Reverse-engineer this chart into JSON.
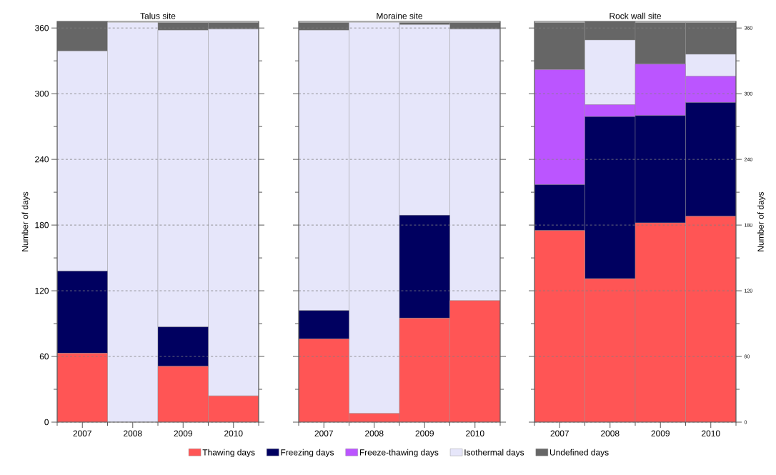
{
  "chart_data": [
    {
      "type": "bar",
      "stacked": true,
      "title": "Talus site",
      "ylabel": "Number of days",
      "categories": [
        "2007",
        "2008",
        "2009",
        "2010"
      ],
      "ylim": [
        0,
        366
      ],
      "yticks": [
        0,
        60,
        120,
        180,
        240,
        300,
        360
      ],
      "grid": "y",
      "tick_labels": "xy",
      "legend": false,
      "series": [
        {
          "color": "#ff5555",
          "values": [
            63,
            0,
            51,
            24
          ]
        },
        {
          "color": "#000060",
          "values": [
            75,
            0,
            36,
            0
          ]
        },
        {
          "color": "#bb55ff",
          "values": [
            0,
            0,
            0,
            0
          ]
        },
        {
          "color": "#e6e6fa",
          "values": [
            201,
            365,
            271,
            335
          ]
        },
        {
          "color": "#666666",
          "values": [
            27,
            0,
            7,
            6
          ]
        }
      ]
    },
    {
      "type": "bar",
      "stacked": true,
      "title": "Moraine site",
      "categories": [
        "2007",
        "2008",
        "2009",
        "2010"
      ],
      "ylim": [
        0,
        366
      ],
      "yticks": [
        0,
        60,
        120,
        180,
        240,
        300,
        360
      ],
      "grid": "y",
      "tick_labels": "x",
      "legend": "bottom",
      "series": [
        {
          "name": "Thawing days",
          "color": "#ff5555",
          "values": [
            76,
            8,
            95,
            111
          ]
        },
        {
          "name": "Freezing days",
          "color": "#000060",
          "values": [
            26,
            0,
            94,
            0
          ]
        },
        {
          "name": "Freeze-thawing days",
          "color": "#bb55ff",
          "values": [
            0,
            0,
            0,
            0
          ]
        },
        {
          "name": "Isothermal days",
          "color": "#e6e6fa",
          "values": [
            256,
            357,
            174,
            248
          ]
        },
        {
          "name": "Undefined days",
          "color": "#666666",
          "values": [
            7,
            0,
            2,
            6
          ]
        }
      ]
    },
    {
      "type": "bar",
      "stacked": true,
      "title": "Rock wall site",
      "ylabel": "Number of days",
      "categories": [
        "2007",
        "2008",
        "2009",
        "2010"
      ],
      "ylim": [
        0,
        366
      ],
      "yticks": [
        0,
        60,
        120,
        180,
        240,
        300,
        360
      ],
      "grid": "y",
      "tick_labels": "xy",
      "legend": false,
      "series": [
        {
          "color": "#ff5555",
          "values": [
            175,
            131,
            182,
            188
          ]
        },
        {
          "color": "#000060",
          "values": [
            42,
            148,
            98,
            104
          ]
        },
        {
          "color": "#bb55ff",
          "values": [
            105,
            11,
            47,
            24
          ]
        },
        {
          "color": "#e6e6fa",
          "values": [
            0,
            59,
            0,
            20
          ]
        },
        {
          "color": "#666666",
          "values": [
            43,
            17,
            38,
            29
          ]
        }
      ]
    }
  ]
}
